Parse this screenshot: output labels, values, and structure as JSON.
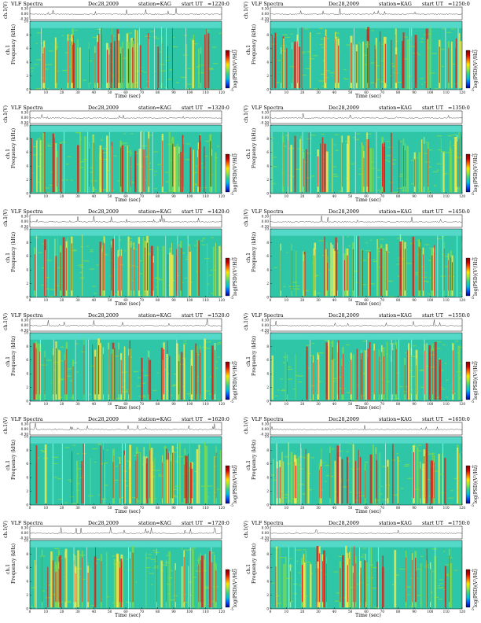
{
  "page_title": "VLF Spectra",
  "chart_data": [
    {
      "type": "heatmap",
      "title": "VLF Spectra",
      "date": "Dec28,2009",
      "station": "station=KAG",
      "start_label": "start UT",
      "start_ut": "=1220:0",
      "waveform_label": "ch.1(V)",
      "channel_label": "ch.1",
      "ylabel": "Frequency (kHz)",
      "xlabel": "Time (sec)",
      "colorbar_label": "log(PSD)(V²/Hz)",
      "xlim": [
        0,
        120
      ],
      "ylim": [
        0,
        10
      ],
      "waveform_ylim": [
        -0.3,
        0.3
      ],
      "xticks": [
        0,
        10,
        20,
        30,
        40,
        50,
        60,
        70,
        80,
        90,
        100,
        110,
        120
      ],
      "yticks": [
        0,
        2,
        4,
        6,
        8,
        10
      ],
      "waveform_ticks": [
        "0.30",
        "0.00",
        "-0.30"
      ],
      "colorbar_ticks": [
        "-1",
        "-5"
      ]
    },
    {
      "type": "heatmap",
      "title": "VLF Spectra",
      "date": "Dec28,2009",
      "station": "station=KAG",
      "start_label": "start UT",
      "start_ut": "=1250:0",
      "waveform_label": "ch.1(V)",
      "channel_label": "ch.1",
      "ylabel": "Frequency (kHz)",
      "xlabel": "Time (sec)",
      "colorbar_label": "log(PSD)(V²/Hz)",
      "xlim": [
        0,
        120
      ],
      "ylim": [
        0,
        10
      ],
      "waveform_ylim": [
        -0.3,
        0.3
      ],
      "xticks": [
        0,
        10,
        20,
        30,
        40,
        50,
        60,
        70,
        80,
        90,
        100,
        110,
        120
      ],
      "yticks": [
        0,
        2,
        4,
        6,
        8,
        10
      ],
      "waveform_ticks": [
        "0.30",
        "0.00",
        "-0.30"
      ],
      "colorbar_ticks": [
        "-1",
        "-5"
      ]
    },
    {
      "type": "heatmap",
      "title": "VLF Spectra",
      "date": "Dec28,2009",
      "station": "station=KAG",
      "start_label": "start UT",
      "start_ut": "=1320:0",
      "waveform_label": "ch.1(V)",
      "channel_label": "ch.1",
      "ylabel": "Frequency (kHz)",
      "xlabel": "Time (sec)",
      "colorbar_label": "log(PSD)(V²/Hz)",
      "xlim": [
        0,
        120
      ],
      "ylim": [
        0,
        10
      ],
      "waveform_ylim": [
        -0.3,
        0.3
      ],
      "xticks": [
        0,
        10,
        20,
        30,
        40,
        50,
        60,
        70,
        80,
        90,
        100,
        110,
        120
      ],
      "yticks": [
        0,
        2,
        4,
        6,
        8,
        10
      ],
      "waveform_ticks": [
        "0.30",
        "0.00",
        "-0.30"
      ],
      "colorbar_ticks": [
        "-1",
        "-5"
      ]
    },
    {
      "type": "heatmap",
      "title": "VLF Spectra",
      "date": "Dec28,2009",
      "station": "station=KAG",
      "start_label": "start UT",
      "start_ut": "=1350:0",
      "waveform_label": "ch.1(V)",
      "channel_label": "ch.1",
      "ylabel": "Frequency (kHz)",
      "xlabel": "Time (sec)",
      "colorbar_label": "log(PSD)(V²/Hz)",
      "xlim": [
        0,
        120
      ],
      "ylim": [
        0,
        10
      ],
      "waveform_ylim": [
        -0.3,
        0.3
      ],
      "xticks": [
        0,
        10,
        20,
        30,
        40,
        50,
        60,
        70,
        80,
        90,
        100,
        110,
        120
      ],
      "yticks": [
        0,
        2,
        4,
        6,
        8,
        10
      ],
      "waveform_ticks": [
        "0.30",
        "0.00",
        "-0.30"
      ],
      "colorbar_ticks": [
        "-1",
        "-5"
      ]
    },
    {
      "type": "heatmap",
      "title": "VLF Spectra",
      "date": "Dec28,2009",
      "station": "station=KAG",
      "start_label": "start UT",
      "start_ut": "=1420:0",
      "waveform_label": "ch.1(V)",
      "channel_label": "ch.1",
      "ylabel": "Frequency (kHz)",
      "xlabel": "Time (sec)",
      "colorbar_label": "log(PSD)(V²/Hz)",
      "xlim": [
        0,
        120
      ],
      "ylim": [
        0,
        10
      ],
      "waveform_ylim": [
        -0.3,
        0.3
      ],
      "xticks": [
        0,
        10,
        20,
        30,
        40,
        50,
        60,
        70,
        80,
        90,
        100,
        110,
        120
      ],
      "yticks": [
        0,
        2,
        4,
        6,
        8,
        10
      ],
      "waveform_ticks": [
        "0.30",
        "0.00",
        "-0.30"
      ],
      "colorbar_ticks": [
        "-1",
        "-5"
      ]
    },
    {
      "type": "heatmap",
      "title": "VLF Spectra",
      "date": "Dec28,2009",
      "station": "station=KAG",
      "start_label": "start UT",
      "start_ut": "=1450:0",
      "waveform_label": "ch.1(V)",
      "channel_label": "ch.1",
      "ylabel": "Frequency (kHz)",
      "xlabel": "Time (sec)",
      "colorbar_label": "log(PSD)(V²/Hz)",
      "xlim": [
        0,
        120
      ],
      "ylim": [
        0,
        10
      ],
      "waveform_ylim": [
        -0.3,
        0.3
      ],
      "xticks": [
        0,
        10,
        20,
        30,
        40,
        50,
        60,
        70,
        80,
        90,
        100,
        110,
        120
      ],
      "yticks": [
        0,
        2,
        4,
        6,
        8,
        10
      ],
      "waveform_ticks": [
        "0.30",
        "0.00",
        "-0.30"
      ],
      "colorbar_ticks": [
        "-1",
        "-5"
      ]
    },
    {
      "type": "heatmap",
      "title": "VLF Spectra",
      "date": "Dec28,2009",
      "station": "station=KAG",
      "start_label": "start UT",
      "start_ut": "=1520:0",
      "waveform_label": "ch.1(V)",
      "channel_label": "ch.1",
      "ylabel": "Frequency (kHz)",
      "xlabel": "Time (sec)",
      "colorbar_label": "log(PSD)(V²/Hz)",
      "xlim": [
        0,
        120
      ],
      "ylim": [
        0,
        10
      ],
      "waveform_ylim": [
        -0.3,
        0.3
      ],
      "xticks": [
        0,
        10,
        20,
        30,
        40,
        50,
        60,
        70,
        80,
        90,
        100,
        110,
        120
      ],
      "yticks": [
        0,
        2,
        4,
        6,
        8,
        10
      ],
      "waveform_ticks": [
        "0.30",
        "0.00",
        "-0.30"
      ],
      "colorbar_ticks": [
        "-1",
        "-5"
      ]
    },
    {
      "type": "heatmap",
      "title": "VLF Spectra",
      "date": "Dec28,2009",
      "station": "station=KAG",
      "start_label": "start UT",
      "start_ut": "=1550:0",
      "waveform_label": "ch.1(V)",
      "channel_label": "ch.1",
      "ylabel": "Frequency (kHz)",
      "xlabel": "Time (sec)",
      "colorbar_label": "log(PSD)(V²/Hz)",
      "xlim": [
        0,
        120
      ],
      "ylim": [
        0,
        10
      ],
      "waveform_ylim": [
        -0.3,
        0.3
      ],
      "xticks": [
        0,
        10,
        20,
        30,
        40,
        50,
        60,
        70,
        80,
        90,
        100,
        110,
        120
      ],
      "yticks": [
        0,
        2,
        4,
        6,
        8,
        10
      ],
      "waveform_ticks": [
        "0.30",
        "0.00",
        "-0.30"
      ],
      "colorbar_ticks": [
        "-1",
        "-5"
      ]
    },
    {
      "type": "heatmap",
      "title": "VLF Spectra",
      "date": "Dec28,2009",
      "station": "station=KAG",
      "start_label": "start UT",
      "start_ut": "=1620:0",
      "waveform_label": "ch.1(V)",
      "channel_label": "ch.1",
      "ylabel": "Frequency (kHz)",
      "xlabel": "Time (sec)",
      "colorbar_label": "log(PSD)(V²/Hz)",
      "xlim": [
        0,
        120
      ],
      "ylim": [
        0,
        10
      ],
      "waveform_ylim": [
        -0.3,
        0.3
      ],
      "xticks": [
        0,
        10,
        20,
        30,
        40,
        50,
        60,
        70,
        80,
        90,
        100,
        110,
        120
      ],
      "yticks": [
        0,
        2,
        4,
        6,
        8,
        10
      ],
      "waveform_ticks": [
        "0.30",
        "0.00",
        "-0.30"
      ],
      "colorbar_ticks": [
        "-1",
        "-5"
      ]
    },
    {
      "type": "heatmap",
      "title": "VLF Spectra",
      "date": "Dec28,2009",
      "station": "station=KAG",
      "start_label": "start UT",
      "start_ut": "=1650:0",
      "waveform_label": "ch.1(V)",
      "channel_label": "ch.1",
      "ylabel": "Frequency (kHz)",
      "xlabel": "Time (sec)",
      "colorbar_label": "log(PSD)(V²/Hz)",
      "xlim": [
        0,
        120
      ],
      "ylim": [
        0,
        10
      ],
      "waveform_ylim": [
        -0.3,
        0.3
      ],
      "xticks": [
        0,
        10,
        20,
        30,
        40,
        50,
        60,
        70,
        80,
        90,
        100,
        110,
        120
      ],
      "yticks": [
        0,
        2,
        4,
        6,
        8,
        10
      ],
      "waveform_ticks": [
        "0.30",
        "0.00",
        "-0.30"
      ],
      "colorbar_ticks": [
        "-1",
        "-5"
      ]
    },
    {
      "type": "heatmap",
      "title": "VLF Spectra",
      "date": "Dec28,2009",
      "station": "station=KAG",
      "start_label": "start UT",
      "start_ut": "=1720:0",
      "waveform_label": "ch.1(V)",
      "channel_label": "ch.1",
      "ylabel": "Frequency (kHz)",
      "xlabel": "Time (sec)",
      "colorbar_label": "log(PSD)(V²/Hz)",
      "xlim": [
        0,
        120
      ],
      "ylim": [
        0,
        10
      ],
      "waveform_ylim": [
        -0.3,
        0.3
      ],
      "xticks": [
        0,
        10,
        20,
        30,
        40,
        50,
        60,
        70,
        80,
        90,
        100,
        110,
        120
      ],
      "yticks": [
        0,
        2,
        4,
        6,
        8,
        10
      ],
      "waveform_ticks": [
        "0.30",
        "0.00",
        "-0.30"
      ],
      "colorbar_ticks": [
        "-1",
        "-5"
      ]
    },
    {
      "type": "heatmap",
      "title": "VLF Spectra",
      "date": "Dec28,2009",
      "station": "station=KAG",
      "start_label": "start UT",
      "start_ut": "=1750:0",
      "waveform_label": "ch.1(V)",
      "channel_label": "ch.1",
      "ylabel": "Frequency (kHz)",
      "xlabel": "Time (sec)",
      "colorbar_label": "log(PSD)(V²/Hz)",
      "xlim": [
        0,
        120
      ],
      "ylim": [
        0,
        10
      ],
      "waveform_ylim": [
        -0.3,
        0.3
      ],
      "xticks": [
        0,
        10,
        20,
        30,
        40,
        50,
        60,
        70,
        80,
        90,
        100,
        110,
        120
      ],
      "yticks": [
        0,
        2,
        4,
        6,
        8,
        10
      ],
      "waveform_ticks": [
        "0.30",
        "0.00",
        "-0.30"
      ],
      "colorbar_ticks": [
        "-1",
        "-5"
      ]
    }
  ],
  "colors": {
    "background": "#54d9c8",
    "low": "#2fc6a8",
    "mid": "#7bd94f",
    "high": "#f2e84a",
    "peak": "#d8281a",
    "colorbar": [
      "#7a0000",
      "#d00000",
      "#ff6a00",
      "#ffe600",
      "#9be83a",
      "#38d18a",
      "#00bfe0",
      "#0050ff",
      "#00008a"
    ]
  }
}
